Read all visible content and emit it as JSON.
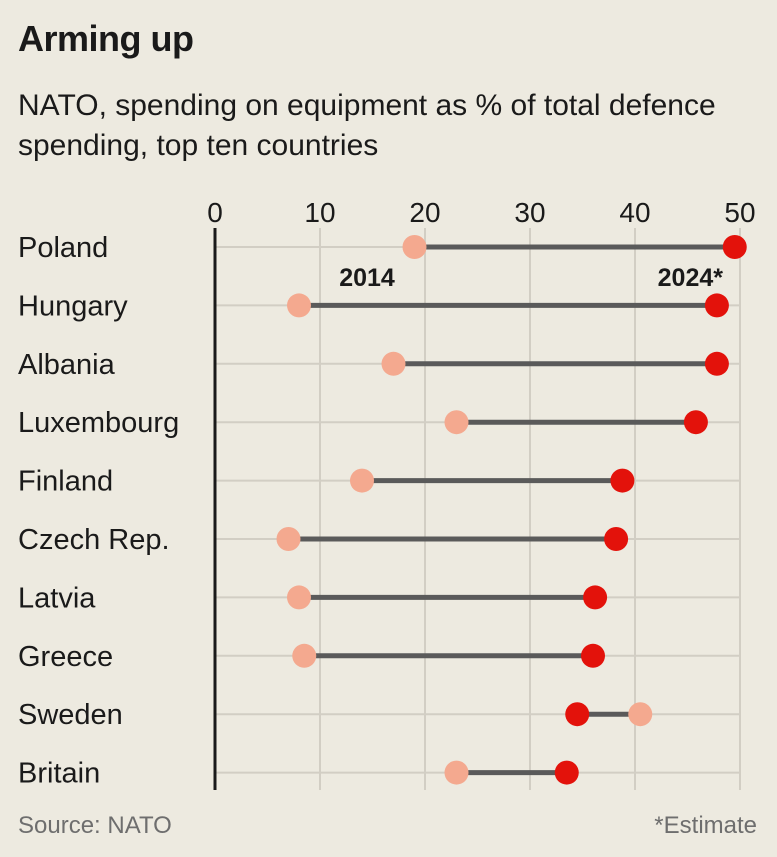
{
  "chart_data": {
    "type": "dot-plot",
    "title": "Arming up",
    "subtitle": "NATO, spending on equipment as % of total defence spending, top ten countries",
    "xlim": [
      0,
      50
    ],
    "xticks": [
      "0",
      "10",
      "20",
      "30",
      "40",
      "50"
    ],
    "grid": true,
    "categories": [
      "Poland",
      "Hungary",
      "Albania",
      "Luxembourg",
      "Finland",
      "Czech Rep.",
      "Latvia",
      "Greece",
      "Sweden",
      "Britain"
    ],
    "series": [
      {
        "name": "2014",
        "color": "#f4a98f",
        "values": [
          19,
          8,
          17,
          23,
          14,
          7,
          8,
          8.5,
          40.5,
          23
        ]
      },
      {
        "name": "2024*",
        "color": "#e3120b",
        "values": [
          49.5,
          47.8,
          47.8,
          45.8,
          38.8,
          38.2,
          36.2,
          36,
          34.5,
          33.5
        ]
      }
    ],
    "connector_color": "#5a5a5a",
    "source": "Source: NATO",
    "note": "*Estimate"
  }
}
